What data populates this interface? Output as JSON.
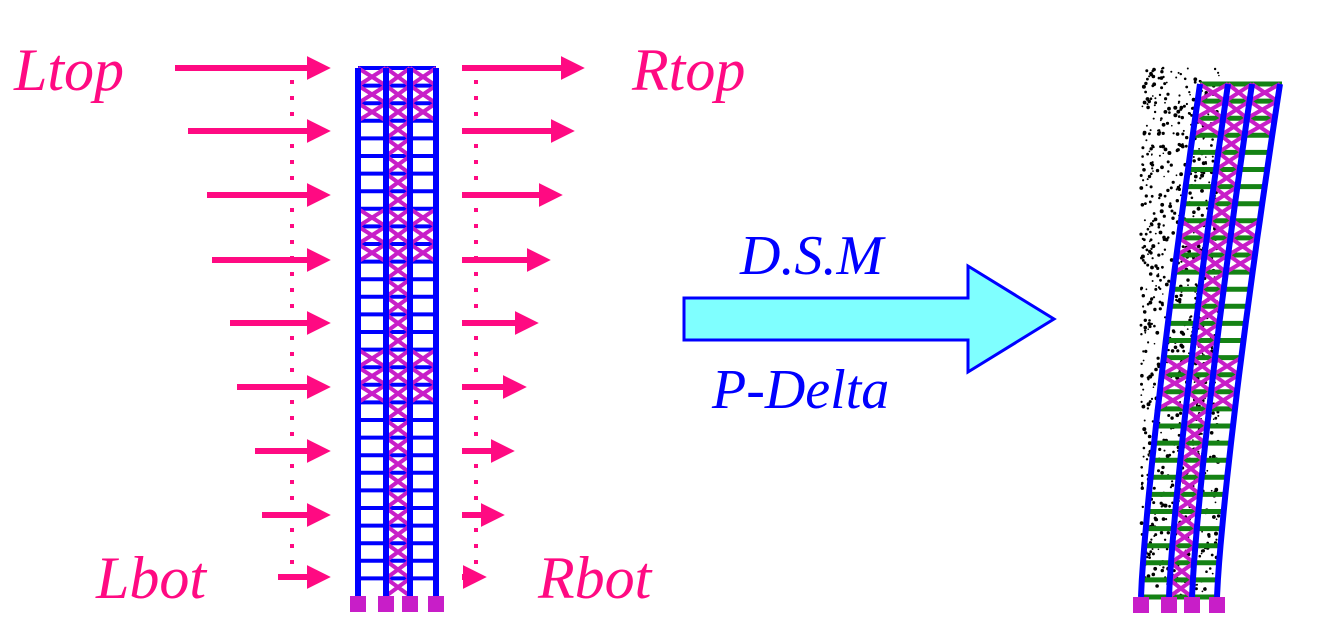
{
  "labels": {
    "left_top": "Ltop",
    "right_top": "Rtop",
    "left_bottom": "Lbot",
    "right_bottom": "Rbot",
    "method_upper": "D.S.M",
    "method_lower": "P-Delta"
  },
  "colors": {
    "load_arrow": "#ff0a82",
    "frame": "#0000ff",
    "bracing": "#c81ec8",
    "support": "#c81ec8",
    "deformed_beam": "#148214",
    "analysis_arrow_fill": "#7fffff",
    "analysis_arrow_stroke": "#0000ff",
    "original_outline": "#000000"
  },
  "structure": {
    "stories": 30,
    "bays": 3,
    "braced_stories": [
      1,
      2,
      3,
      9,
      10,
      11,
      17,
      18,
      19
    ]
  }
}
